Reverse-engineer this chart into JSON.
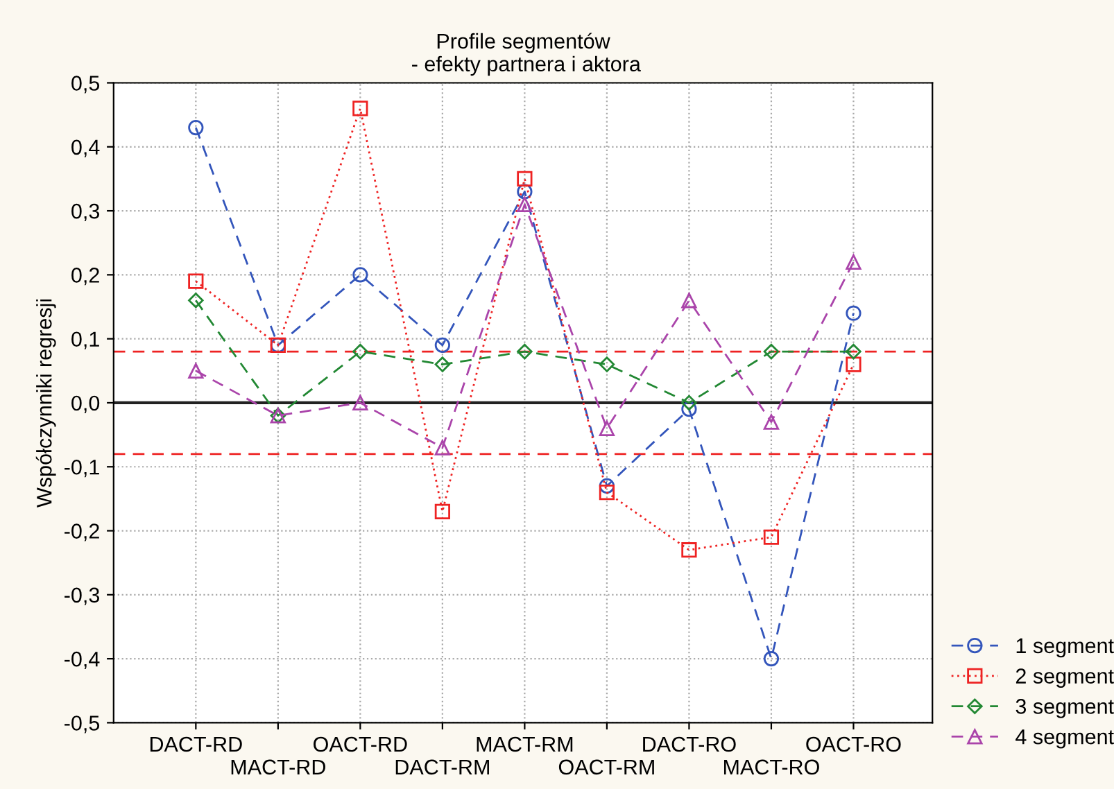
{
  "chart_data": {
    "type": "line",
    "title": "Profile segmentów\n - efekty partnera i aktora",
    "ylabel": "Współczynniki regresji",
    "categories": [
      "DACT-RD",
      "MACT-RD",
      "OACT-RD",
      "DACT-RM",
      "MACT-RM",
      "OACT-RM",
      "DACT-RO",
      "MACT-RO",
      "OACT-RO"
    ],
    "series": [
      {
        "name": "1 segment",
        "color": "#3355bb",
        "marker": "circle",
        "line_style": "dashed",
        "values": [
          0.43,
          0.09,
          0.2,
          0.09,
          0.33,
          -0.13,
          -0.01,
          -0.4,
          0.14
        ]
      },
      {
        "name": "2 segment",
        "color": "#ee2222",
        "marker": "square",
        "line_style": "dotted",
        "values": [
          0.19,
          0.09,
          0.46,
          -0.17,
          0.35,
          -0.14,
          -0.23,
          -0.21,
          0.06
        ]
      },
      {
        "name": "3 segment",
        "color": "#228833",
        "marker": "diamond",
        "line_style": "dashed",
        "values": [
          0.16,
          -0.02,
          0.08,
          0.06,
          0.08,
          0.06,
          0.0,
          0.08,
          0.08
        ]
      },
      {
        "name": "4 segment",
        "color": "#aa44aa",
        "marker": "triangle",
        "line_style": "dashed",
        "values": [
          0.05,
          -0.02,
          0.0,
          -0.07,
          0.31,
          -0.04,
          0.16,
          -0.03,
          0.22
        ]
      }
    ],
    "ylim": [
      -0.5,
      0.5
    ],
    "yticks": [
      {
        "value": -0.5,
        "label": "-0,5"
      },
      {
        "value": -0.4,
        "label": "-0,4"
      },
      {
        "value": -0.3,
        "label": "-0,3"
      },
      {
        "value": -0.2,
        "label": "-0,2"
      },
      {
        "value": -0.1,
        "label": "-0,1"
      },
      {
        "value": 0,
        "label": "0,0"
      },
      {
        "value": 0.1,
        "label": "0,1"
      },
      {
        "value": 0.2,
        "label": "0,2"
      },
      {
        "value": 0.3,
        "label": "0,3"
      },
      {
        "value": 0.4,
        "label": "0,4"
      },
      {
        "value": 0.5,
        "label": "0,5"
      }
    ],
    "ref_lines": [
      {
        "axis": "y",
        "value": 0.08,
        "color": "#ee2222",
        "line_style": "dashed"
      },
      {
        "axis": "y",
        "value": -0.08,
        "color": "#ee2222",
        "line_style": "dashed"
      },
      {
        "axis": "y",
        "value": 0,
        "color": "#222222",
        "line_style": "solid"
      }
    ],
    "grid": true,
    "legend": "bottom right"
  }
}
